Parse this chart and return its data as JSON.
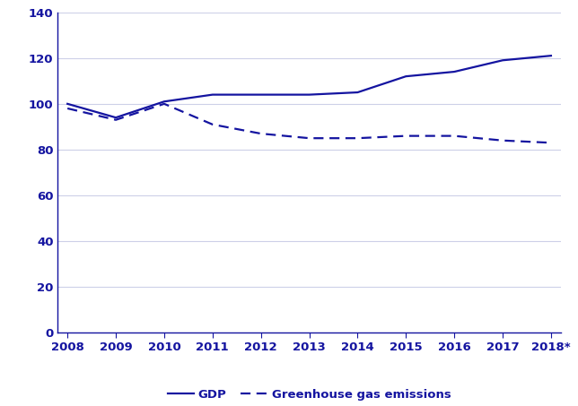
{
  "years": [
    2008,
    2009,
    2010,
    2011,
    2012,
    2013,
    2014,
    2015,
    2016,
    2017,
    2018
  ],
  "x_labels": [
    "2008",
    "2009",
    "2010",
    "2011",
    "2012",
    "2013",
    "2014",
    "2015",
    "2016",
    "2017",
    "2018*"
  ],
  "gdp": [
    100,
    94,
    101,
    104,
    104,
    104,
    105,
    112,
    114,
    119,
    121
  ],
  "ghg": [
    98,
    93,
    100,
    91,
    87,
    85,
    85,
    86,
    86,
    84,
    83
  ],
  "line_color": "#1414a0",
  "ylim": [
    0,
    140
  ],
  "yticks": [
    0,
    20,
    40,
    60,
    80,
    100,
    120,
    140
  ],
  "legend_gdp": "GDP",
  "legend_ghg": "Greenhouse gas emissions",
  "background_color": "#ffffff",
  "grid_color": "#cdd0e8",
  "axis_color": "#1414a0",
  "tick_label_color": "#1414a0",
  "spine_color": "#1414a0",
  "line_width": 1.6
}
